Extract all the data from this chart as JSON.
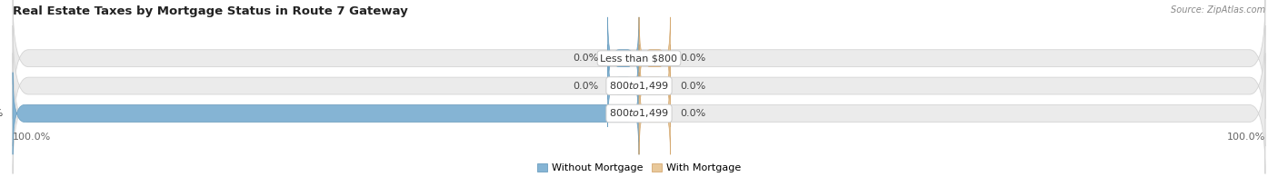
{
  "title": "Real Estate Taxes by Mortgage Status in Route 7 Gateway",
  "source": "Source: ZipAtlas.com",
  "rows": [
    {
      "label": "Less than $800",
      "without_mortgage": 0.0,
      "with_mortgage": 0.0
    },
    {
      "label": "$800 to $1,499",
      "without_mortgage": 0.0,
      "with_mortgage": 0.0
    },
    {
      "label": "$800 to $1,499",
      "without_mortgage": 100.0,
      "with_mortgage": 0.0
    }
  ],
  "color_without": "#85b4d4",
  "color_with": "#e8c89a",
  "color_without_edge": "#6a9ec0",
  "color_with_edge": "#d4a870",
  "bar_bg_color": "#ebebeb",
  "bar_bg_edge": "#d4d4d4",
  "xlim_left": -100,
  "xlim_right": 100,
  "legend_without": "Without Mortgage",
  "legend_with": "With Mortgage",
  "background_color": "#ffffff",
  "bar_height": 0.62,
  "label_fontsize": 8.0,
  "title_fontsize": 9.5,
  "source_fontsize": 7.0,
  "axis_fontsize": 8.0,
  "stub_size": 5.0
}
